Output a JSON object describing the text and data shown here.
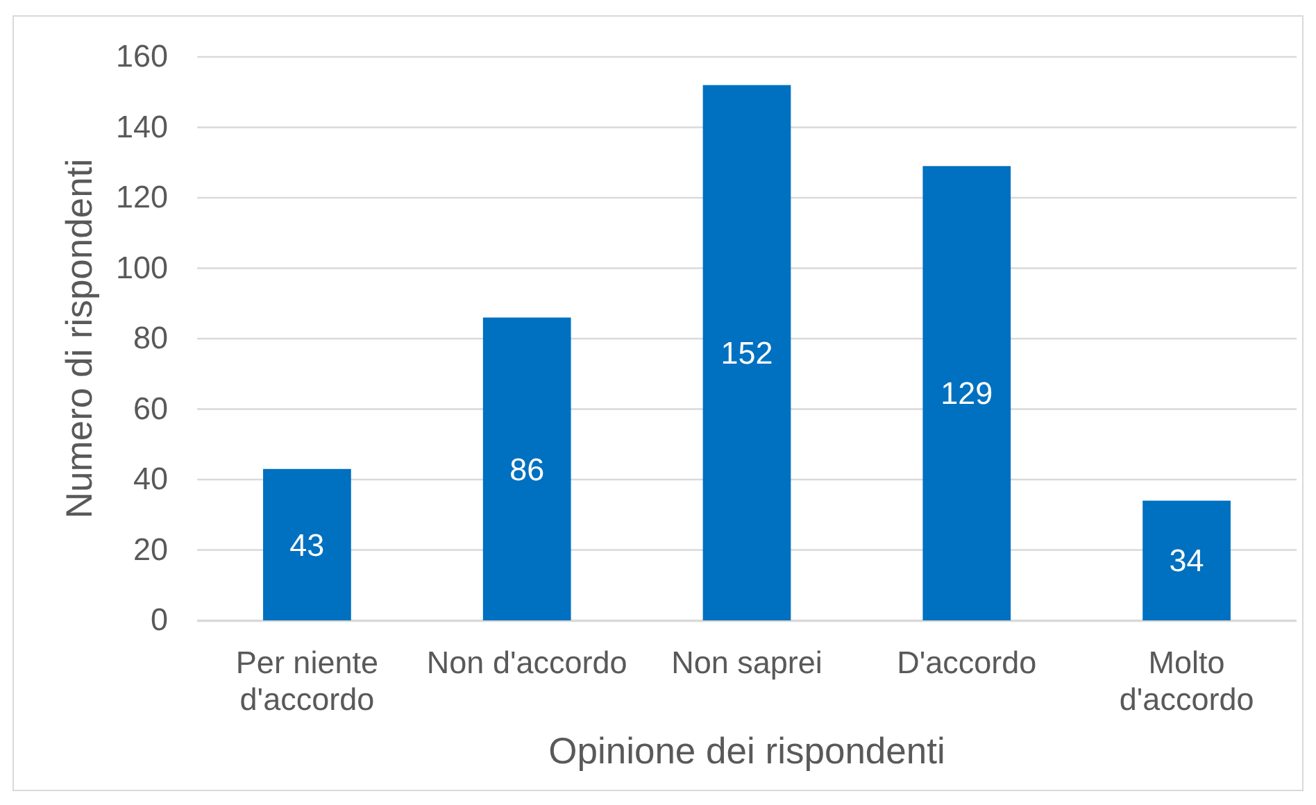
{
  "chart_data": {
    "type": "bar",
    "xlabel": "Opinione dei rispondenti",
    "ylabel": "Numero di rispondenti",
    "categories": [
      "Per niente d'accordo",
      "Non d'accordo",
      "Non saprei",
      "D'accordo",
      "Molto d'accordo"
    ],
    "values": [
      43,
      86,
      152,
      129,
      34
    ],
    "color": "#0070c0",
    "ylim": [
      0,
      160
    ],
    "yticks": [
      0,
      20,
      40,
      60,
      80,
      100,
      120,
      140,
      160
    ],
    "grid": "y",
    "data_labels": true
  }
}
